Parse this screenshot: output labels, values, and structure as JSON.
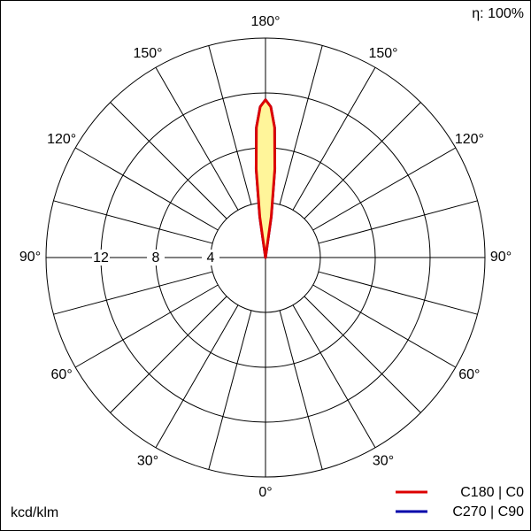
{
  "chart_data": {
    "type": "polar",
    "efficiency_label": "η: 100%",
    "unit_label": "kcd/klm",
    "rlim": [
      0,
      16
    ],
    "rticks": [
      4,
      8,
      12
    ],
    "angle_ticks": [
      {
        "value": 0,
        "label": "0°"
      },
      {
        "value": 30,
        "label": "30°"
      },
      {
        "value": 60,
        "label": "60°"
      },
      {
        "value": 90,
        "label": "90°"
      },
      {
        "value": 120,
        "label": "120°"
      },
      {
        "value": 150,
        "label": "150°"
      },
      {
        "value": 180,
        "label": "180°"
      }
    ],
    "angles": [
      170,
      172,
      174,
      176,
      178,
      180,
      182,
      184,
      186,
      188,
      190
    ],
    "series": [
      {
        "name": "C270 | C90",
        "color": "#0000aa",
        "values": [
          0,
          3,
          6.5,
          9.5,
          11,
          11.5,
          11,
          9.5,
          6.5,
          3,
          0
        ]
      },
      {
        "name": "C180 | C0",
        "color": "#dd0000",
        "fill": "#fff59a",
        "values": [
          0,
          3,
          6.5,
          9.5,
          11,
          11.5,
          11,
          9.5,
          6.5,
          3,
          0
        ]
      }
    ]
  }
}
